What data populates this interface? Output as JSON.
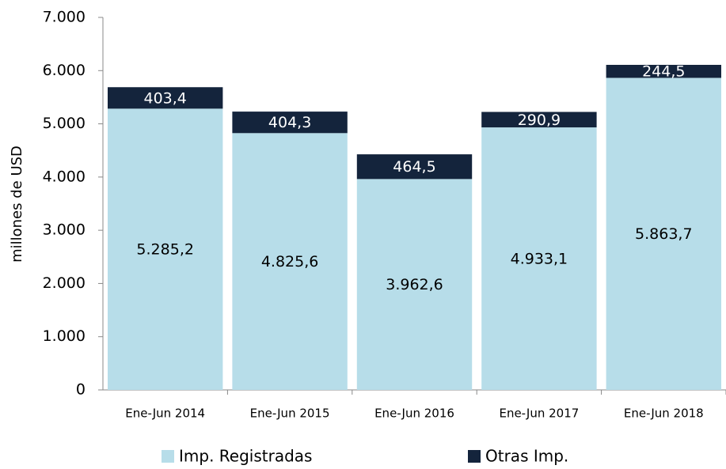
{
  "chart_data": {
    "type": "stacked_bar",
    "y_label": "millones de  USD",
    "categories": [
      "Ene-Jun 2014",
      "Ene-Jun 2015",
      "Ene-Jun 2016",
      "Ene-Jun 2017",
      "Ene-Jun 2018"
    ],
    "series": [
      {
        "name": "Imp. Registradas",
        "color": "#b7dde9",
        "values": [
          5285.2,
          4825.6,
          3962.6,
          4933.1,
          5863.7
        ],
        "value_labels": [
          "5.285,2",
          "4.825,6",
          "3.962,6",
          "4.933,1",
          "5.863,7"
        ]
      },
      {
        "name": "Otras Imp.",
        "color": "#14243c",
        "values": [
          403.4,
          404.3,
          464.5,
          290.9,
          244.5
        ],
        "value_labels": [
          "403,4",
          "404,3",
          "464,5",
          "290,9",
          "244,5"
        ]
      }
    ],
    "ylim": [
      0,
      7000
    ],
    "yticks": [
      0,
      {
        "value": 1000,
        "label": "1.000"
      },
      {
        "value": 2000,
        "label": "2.000"
      },
      {
        "value": 3000,
        "label": "3.000"
      },
      {
        "value": 4000,
        "label": "4.000"
      },
      {
        "value": 5000,
        "label": "5.000"
      },
      {
        "value": 6000,
        "label": "6.000"
      },
      {
        "value": 7000,
        "label": "7.000"
      }
    ],
    "legend": "bottom"
  }
}
